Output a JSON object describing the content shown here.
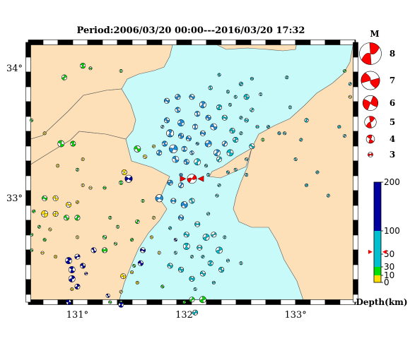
{
  "title": "Period:2006/03/20 00:00---2016/03/20 17:32",
  "axes": {
    "lon_ticks": [
      {
        "value": 131,
        "label": "131°"
      },
      {
        "value": 132,
        "label": "132°"
      },
      {
        "value": 133,
        "label": "133°"
      }
    ],
    "lat_ticks": [
      {
        "value": 34,
        "label": "34°"
      },
      {
        "value": 33,
        "label": "33°"
      }
    ],
    "lon_range": [
      130.55,
      133.55
    ],
    "lat_range": [
      32.2,
      34.2
    ]
  },
  "magnitude_legend": {
    "title": "M",
    "items": [
      {
        "label": "8",
        "m": 8
      },
      {
        "label": "7",
        "m": 7
      },
      {
        "label": "6",
        "m": 6
      },
      {
        "label": "5",
        "m": 5
      },
      {
        "label": "4",
        "m": 4
      },
      {
        "label": "3",
        "m": 3
      }
    ]
  },
  "depth_scale": {
    "ticks": [
      {
        "value": 200,
        "label": "200"
      },
      {
        "value": 100,
        "label": "100"
      },
      {
        "value": 50,
        "label": "50"
      },
      {
        "value": 30,
        "label": "30"
      },
      {
        "value": 10,
        "label": "10"
      },
      {
        "value": 0,
        "label": "0"
      }
    ],
    "bands": [
      {
        "from": 0,
        "to": 10,
        "color": "#ffe000"
      },
      {
        "from": 10,
        "to": 30,
        "color": "#00e000"
      },
      {
        "from": 30,
        "to": 100,
        "color": "#00c0d0"
      },
      {
        "from": 100,
        "to": 200,
        "color": "#0000a0"
      }
    ],
    "label": "Depth(km)",
    "marker_depth": 55
  },
  "colors": {
    "sea": "#c8fafa",
    "land": "#fde0b8",
    "shallow": "#ffe000",
    "crust": "#00e000",
    "intermediate": "#00c0d0",
    "intermediate_dark": "#1a90e0",
    "deep": "#0000a0",
    "highlight": "#ff0000"
  },
  "highlight_event": {
    "lon": 132.05,
    "lat": 33.15,
    "depth": 55,
    "m": 5
  },
  "events": [
    {
      "lon": 130.58,
      "lat": 33.6,
      "d": 15,
      "m": 3
    },
    {
      "lon": 130.88,
      "lat": 33.93,
      "d": 15,
      "m": 3.5
    },
    {
      "lon": 131.05,
      "lat": 34.02,
      "d": 15,
      "m": 3.5
    },
    {
      "lon": 131.12,
      "lat": 34.0,
      "d": 15,
      "m": 3
    },
    {
      "lon": 131.4,
      "lat": 33.98,
      "d": 15,
      "m": 3
    },
    {
      "lon": 130.7,
      "lat": 33.5,
      "d": 5,
      "m": 3
    },
    {
      "lon": 130.85,
      "lat": 33.42,
      "d": 15,
      "m": 3.8
    },
    {
      "lon": 130.96,
      "lat": 33.42,
      "d": 15,
      "m": 3.5
    },
    {
      "lon": 130.82,
      "lat": 33.25,
      "d": 5,
      "m": 3
    },
    {
      "lon": 131.05,
      "lat": 33.3,
      "d": 5,
      "m": 3
    },
    {
      "lon": 131.0,
      "lat": 33.22,
      "d": 15,
      "m": 3
    },
    {
      "lon": 131.55,
      "lat": 33.38,
      "d": 15,
      "m": 3.8
    },
    {
      "lon": 131.62,
      "lat": 33.32,
      "d": 5,
      "m": 3.2
    },
    {
      "lon": 131.7,
      "lat": 33.4,
      "d": 5,
      "m": 3
    },
    {
      "lon": 131.43,
      "lat": 33.2,
      "d": 5,
      "m": 3.5
    },
    {
      "lon": 131.47,
      "lat": 33.15,
      "d": 200,
      "m": 4
    },
    {
      "lon": 131.4,
      "lat": 33.12,
      "d": 15,
      "m": 3.2
    },
    {
      "lon": 131.05,
      "lat": 33.1,
      "d": 5,
      "m": 3
    },
    {
      "lon": 131.12,
      "lat": 33.08,
      "d": 5,
      "m": 3
    },
    {
      "lon": 131.25,
      "lat": 33.08,
      "d": 15,
      "m": 3
    },
    {
      "lon": 130.7,
      "lat": 33.0,
      "d": 15,
      "m": 3.5
    },
    {
      "lon": 130.8,
      "lat": 33.0,
      "d": 5,
      "m": 3.5
    },
    {
      "lon": 130.92,
      "lat": 32.95,
      "d": 5,
      "m": 3.5
    },
    {
      "lon": 131.0,
      "lat": 32.97,
      "d": 5,
      "m": 3
    },
    {
      "lon": 130.6,
      "lat": 32.9,
      "d": 15,
      "m": 3
    },
    {
      "lon": 130.7,
      "lat": 32.88,
      "d": 5,
      "m": 3.8
    },
    {
      "lon": 130.8,
      "lat": 32.88,
      "d": 5,
      "m": 3.5
    },
    {
      "lon": 130.9,
      "lat": 32.85,
      "d": 15,
      "m": 3.5
    },
    {
      "lon": 131.0,
      "lat": 32.85,
      "d": 15,
      "m": 3.5
    },
    {
      "lon": 130.65,
      "lat": 32.78,
      "d": 15,
      "m": 3
    },
    {
      "lon": 130.75,
      "lat": 32.76,
      "d": 5,
      "m": 3
    },
    {
      "lon": 130.58,
      "lat": 32.72,
      "d": 15,
      "m": 3
    },
    {
      "lon": 130.7,
      "lat": 32.68,
      "d": 15,
      "m": 3
    },
    {
      "lon": 130.58,
      "lat": 32.6,
      "d": 15,
      "m": 3
    },
    {
      "lon": 130.68,
      "lat": 32.58,
      "d": 5,
      "m": 3
    },
    {
      "lon": 130.8,
      "lat": 32.55,
      "d": 5,
      "m": 3
    },
    {
      "lon": 130.92,
      "lat": 32.52,
      "d": 200,
      "m": 3.8
    },
    {
      "lon": 131.0,
      "lat": 32.55,
      "d": 200,
      "m": 3.5
    },
    {
      "lon": 131.15,
      "lat": 32.6,
      "d": 200,
      "m": 3.5
    },
    {
      "lon": 131.25,
      "lat": 32.6,
      "d": 15,
      "m": 3.5
    },
    {
      "lon": 131.25,
      "lat": 32.7,
      "d": 15,
      "m": 3.2
    },
    {
      "lon": 131.35,
      "lat": 32.65,
      "d": 15,
      "m": 3
    },
    {
      "lon": 131.55,
      "lat": 32.82,
      "d": 15,
      "m": 3.2
    },
    {
      "lon": 131.37,
      "lat": 32.78,
      "d": 15,
      "m": 3
    },
    {
      "lon": 131.0,
      "lat": 32.7,
      "d": 5,
      "m": 3
    },
    {
      "lon": 130.95,
      "lat": 32.45,
      "d": 200,
      "m": 3.8
    },
    {
      "lon": 131.05,
      "lat": 32.48,
      "d": 200,
      "m": 3.5
    },
    {
      "lon": 130.95,
      "lat": 32.38,
      "d": 200,
      "m": 3.8
    },
    {
      "lon": 131.0,
      "lat": 32.32,
      "d": 200,
      "m": 3.5
    },
    {
      "lon": 131.08,
      "lat": 32.42,
      "d": 200,
      "m": 3
    },
    {
      "lon": 131.28,
      "lat": 32.25,
      "d": 200,
      "m": 3.2
    },
    {
      "lon": 131.4,
      "lat": 32.28,
      "d": 5,
      "m": 3
    },
    {
      "lon": 131.3,
      "lat": 32.2,
      "d": 15,
      "m": 3
    },
    {
      "lon": 131.4,
      "lat": 32.2,
      "d": 15,
      "m": 3
    },
    {
      "lon": 131.4,
      "lat": 32.18,
      "d": 100,
      "m": 3.5
    },
    {
      "lon": 130.92,
      "lat": 32.2,
      "d": 200,
      "m": 3.5
    },
    {
      "lon": 130.95,
      "lat": 32.3,
      "d": 5,
      "m": 3
    },
    {
      "lon": 131.5,
      "lat": 32.43,
      "d": 5,
      "m": 3
    },
    {
      "lon": 131.55,
      "lat": 32.35,
      "d": 5,
      "m": 3
    },
    {
      "lon": 131.58,
      "lat": 32.5,
      "d": 200,
      "m": 3.5
    },
    {
      "lon": 131.6,
      "lat": 32.6,
      "d": 200,
      "m": 3.5
    },
    {
      "lon": 131.68,
      "lat": 32.7,
      "d": 5,
      "m": 3
    },
    {
      "lon": 131.5,
      "lat": 32.68,
      "d": 15,
      "m": 3
    },
    {
      "lon": 131.42,
      "lat": 32.4,
      "d": 5,
      "m": 3.5
    },
    {
      "lon": 131.52,
      "lat": 32.48,
      "d": 15,
      "m": 3
    },
    {
      "lon": 131.78,
      "lat": 32.32,
      "d": 15,
      "m": 3
    },
    {
      "lon": 131.75,
      "lat": 32.58,
      "d": 5,
      "m": 3
    },
    {
      "lon": 131.9,
      "lat": 32.68,
      "d": 100,
      "m": 3
    },
    {
      "lon": 132.0,
      "lat": 32.72,
      "d": 55,
      "m": 3.5
    },
    {
      "lon": 132.1,
      "lat": 32.8,
      "d": 55,
      "m": 3.5
    },
    {
      "lon": 131.85,
      "lat": 32.77,
      "d": 55,
      "m": 3
    },
    {
      "lon": 131.95,
      "lat": 32.85,
      "d": 75,
      "m": 3.5
    },
    {
      "lon": 132.2,
      "lat": 32.88,
      "d": 55,
      "m": 3
    },
    {
      "lon": 131.98,
      "lat": 32.95,
      "d": 75,
      "m": 3.8
    },
    {
      "lon": 132.05,
      "lat": 32.98,
      "d": 55,
      "m": 3.5
    },
    {
      "lon": 132.18,
      "lat": 32.7,
      "d": 55,
      "m": 3.8
    },
    {
      "lon": 132.25,
      "lat": 32.72,
      "d": 55,
      "m": 3.5
    },
    {
      "lon": 132.3,
      "lat": 32.6,
      "d": 55,
      "m": 3.8
    },
    {
      "lon": 132.12,
      "lat": 32.62,
      "d": 55,
      "m": 3.5
    },
    {
      "lon": 132.05,
      "lat": 32.55,
      "d": 55,
      "m": 3
    },
    {
      "lon": 132.22,
      "lat": 32.5,
      "d": 55,
      "m": 3.5
    },
    {
      "lon": 132.32,
      "lat": 32.45,
      "d": 55,
      "m": 3.5
    },
    {
      "lon": 132.38,
      "lat": 32.52,
      "d": 55,
      "m": 3
    },
    {
      "lon": 132.15,
      "lat": 32.42,
      "d": 55,
      "m": 3.5
    },
    {
      "lon": 132.05,
      "lat": 32.38,
      "d": 55,
      "m": 3.5
    },
    {
      "lon": 131.95,
      "lat": 32.45,
      "d": 55,
      "m": 3.5
    },
    {
      "lon": 132.08,
      "lat": 32.3,
      "d": 55,
      "m": 3
    },
    {
      "lon": 132.15,
      "lat": 32.22,
      "d": 15,
      "m": 3.8
    },
    {
      "lon": 132.05,
      "lat": 32.22,
      "d": 15,
      "m": 3.5
    },
    {
      "lon": 131.98,
      "lat": 32.2,
      "d": 15,
      "m": 3
    },
    {
      "lon": 132.08,
      "lat": 32.12,
      "d": 55,
      "m": 3.5
    },
    {
      "lon": 131.9,
      "lat": 32.58,
      "d": 55,
      "m": 3
    },
    {
      "lon": 131.85,
      "lat": 32.48,
      "d": 55,
      "m": 3.5
    },
    {
      "lon": 132.25,
      "lat": 32.35,
      "d": 55,
      "m": 3
    },
    {
      "lon": 132.0,
      "lat": 32.63,
      "d": 55,
      "m": 3.8
    },
    {
      "lon": 132.15,
      "lat": 32.55,
      "d": 55,
      "m": 3
    },
    {
      "lon": 132.5,
      "lat": 32.5,
      "d": 55,
      "m": 3
    },
    {
      "lon": 132.35,
      "lat": 32.7,
      "d": 55,
      "m": 3
    },
    {
      "lon": 131.85,
      "lat": 33.12,
      "d": 75,
      "m": 3.5
    },
    {
      "lon": 131.75,
      "lat": 33.0,
      "d": 75,
      "m": 4
    },
    {
      "lon": 131.88,
      "lat": 32.98,
      "d": 75,
      "m": 3.5
    },
    {
      "lon": 131.95,
      "lat": 33.1,
      "d": 75,
      "m": 3.5
    },
    {
      "lon": 131.95,
      "lat": 33.18,
      "d": 75,
      "m": 3
    },
    {
      "lon": 132.2,
      "lat": 33.18,
      "d": 55,
      "m": 3
    },
    {
      "lon": 132.28,
      "lat": 33.02,
      "d": 55,
      "m": 3
    },
    {
      "lon": 132.3,
      "lat": 33.1,
      "d": 55,
      "m": 3
    },
    {
      "lon": 132.45,
      "lat": 33.22,
      "d": 55,
      "m": 3
    },
    {
      "lon": 132.55,
      "lat": 33.18,
      "d": 55,
      "m": 3
    },
    {
      "lon": 132.38,
      "lat": 33.2,
      "d": 55,
      "m": 3
    },
    {
      "lon": 131.82,
      "lat": 33.6,
      "d": 75,
      "m": 3.5
    },
    {
      "lon": 131.92,
      "lat": 33.68,
      "d": 75,
      "m": 3.5
    },
    {
      "lon": 131.95,
      "lat": 33.58,
      "d": 75,
      "m": 3.8
    },
    {
      "lon": 131.85,
      "lat": 33.5,
      "d": 75,
      "m": 4
    },
    {
      "lon": 131.95,
      "lat": 33.48,
      "d": 75,
      "m": 3.5
    },
    {
      "lon": 131.8,
      "lat": 33.42,
      "d": 75,
      "m": 3.5
    },
    {
      "lon": 131.88,
      "lat": 33.38,
      "d": 75,
      "m": 4.2
    },
    {
      "lon": 131.98,
      "lat": 33.38,
      "d": 75,
      "m": 3.5
    },
    {
      "lon": 132.02,
      "lat": 33.46,
      "d": 75,
      "m": 3.5
    },
    {
      "lon": 131.75,
      "lat": 33.35,
      "d": 75,
      "m": 3.5
    },
    {
      "lon": 131.78,
      "lat": 33.55,
      "d": 75,
      "m": 3
    },
    {
      "lon": 131.9,
      "lat": 33.3,
      "d": 75,
      "m": 3.8
    },
    {
      "lon": 132.0,
      "lat": 33.28,
      "d": 75,
      "m": 3.5
    },
    {
      "lon": 132.05,
      "lat": 33.35,
      "d": 75,
      "m": 3.2
    },
    {
      "lon": 132.08,
      "lat": 33.55,
      "d": 75,
      "m": 3.5
    },
    {
      "lon": 132.1,
      "lat": 33.65,
      "d": 75,
      "m": 3.5
    },
    {
      "lon": 132.15,
      "lat": 33.5,
      "d": 75,
      "m": 3.5
    },
    {
      "lon": 132.1,
      "lat": 33.42,
      "d": 75,
      "m": 3
    },
    {
      "lon": 132.15,
      "lat": 33.72,
      "d": 75,
      "m": 3.8
    },
    {
      "lon": 132.05,
      "lat": 33.78,
      "d": 75,
      "m": 3.5
    },
    {
      "lon": 131.92,
      "lat": 33.78,
      "d": 75,
      "m": 3.5
    },
    {
      "lon": 132.2,
      "lat": 33.62,
      "d": 75,
      "m": 3.5
    },
    {
      "lon": 132.25,
      "lat": 33.55,
      "d": 75,
      "m": 3.8
    },
    {
      "lon": 132.2,
      "lat": 33.42,
      "d": 75,
      "m": 3.8
    },
    {
      "lon": 132.28,
      "lat": 33.35,
      "d": 75,
      "m": 3.8
    },
    {
      "lon": 132.35,
      "lat": 33.42,
      "d": 75,
      "m": 3.5
    },
    {
      "lon": 132.3,
      "lat": 33.3,
      "d": 55,
      "m": 3.5
    },
    {
      "lon": 132.1,
      "lat": 33.28,
      "d": 55,
      "m": 3.8
    },
    {
      "lon": 132.18,
      "lat": 33.25,
      "d": 55,
      "m": 3
    },
    {
      "lon": 132.4,
      "lat": 33.35,
      "d": 55,
      "m": 3.8
    },
    {
      "lon": 132.45,
      "lat": 33.45,
      "d": 55,
      "m": 3.5
    },
    {
      "lon": 132.42,
      "lat": 33.52,
      "d": 55,
      "m": 3.5
    },
    {
      "lon": 132.5,
      "lat": 33.5,
      "d": 55,
      "m": 3
    },
    {
      "lon": 132.55,
      "lat": 33.6,
      "d": 55,
      "m": 3.2
    },
    {
      "lon": 132.35,
      "lat": 33.62,
      "d": 55,
      "m": 3.5
    },
    {
      "lon": 132.3,
      "lat": 33.7,
      "d": 55,
      "m": 3.5
    },
    {
      "lon": 132.4,
      "lat": 33.72,
      "d": 55,
      "m": 3
    },
    {
      "lon": 132.45,
      "lat": 33.78,
      "d": 55,
      "m": 3
    },
    {
      "lon": 132.38,
      "lat": 33.82,
      "d": 55,
      "m": 3
    },
    {
      "lon": 132.55,
      "lat": 33.78,
      "d": 55,
      "m": 3.5
    },
    {
      "lon": 132.6,
      "lat": 33.68,
      "d": 55,
      "m": 3.2
    },
    {
      "lon": 132.5,
      "lat": 33.88,
      "d": 55,
      "m": 3.2
    },
    {
      "lon": 132.6,
      "lat": 33.92,
      "d": 55,
      "m": 3
    },
    {
      "lon": 132.68,
      "lat": 33.8,
      "d": 55,
      "m": 3
    },
    {
      "lon": 132.65,
      "lat": 33.55,
      "d": 55,
      "m": 3
    },
    {
      "lon": 132.6,
      "lat": 33.4,
      "d": 55,
      "m": 3.5
    },
    {
      "lon": 132.55,
      "lat": 33.3,
      "d": 55,
      "m": 3
    },
    {
      "lon": 132.5,
      "lat": 33.62,
      "d": 55,
      "m": 3
    },
    {
      "lon": 132.7,
      "lat": 33.45,
      "d": 15,
      "m": 3
    },
    {
      "lon": 132.22,
      "lat": 33.85,
      "d": 55,
      "m": 3.2
    },
    {
      "lon": 132.3,
      "lat": 33.95,
      "d": 55,
      "m": 3
    },
    {
      "lon": 131.82,
      "lat": 33.75,
      "d": 75,
      "m": 3.5
    },
    {
      "lon": 132.92,
      "lat": 33.93,
      "d": 55,
      "m": 3
    },
    {
      "lon": 132.95,
      "lat": 33.7,
      "d": 55,
      "m": 3
    },
    {
      "lon": 132.75,
      "lat": 33.55,
      "d": 55,
      "m": 3
    },
    {
      "lon": 132.85,
      "lat": 33.5,
      "d": 55,
      "m": 3
    },
    {
      "lon": 133.1,
      "lat": 33.6,
      "d": 55,
      "m": 3.2
    },
    {
      "lon": 133.45,
      "lat": 33.98,
      "d": 15,
      "m": 3
    },
    {
      "lon": 133.5,
      "lat": 33.88,
      "d": 55,
      "m": 3
    },
    {
      "lon": 133.5,
      "lat": 33.78,
      "d": 5,
      "m": 3
    },
    {
      "lon": 133.4,
      "lat": 33.55,
      "d": 55,
      "m": 3
    },
    {
      "lon": 133.45,
      "lat": 33.48,
      "d": 55,
      "m": 3
    },
    {
      "lon": 133.05,
      "lat": 33.45,
      "d": 55,
      "m": 3
    },
    {
      "lon": 133.0,
      "lat": 33.3,
      "d": 55,
      "m": 3
    },
    {
      "lon": 133.2,
      "lat": 33.2,
      "d": 55,
      "m": 3
    },
    {
      "lon": 133.3,
      "lat": 33.02,
      "d": 55,
      "m": 3
    },
    {
      "lon": 133.1,
      "lat": 33.1,
      "d": 55,
      "m": 3
    },
    {
      "lon": 132.9,
      "lat": 33.5,
      "d": 55,
      "m": 3
    },
    {
      "lon": 131.6,
      "lat": 32.98,
      "d": 15,
      "m": 3
    },
    {
      "lon": 131.7,
      "lat": 32.85,
      "d": 5,
      "m": 3
    },
    {
      "lon": 131.3,
      "lat": 32.85,
      "d": 15,
      "m": 3
    }
  ]
}
